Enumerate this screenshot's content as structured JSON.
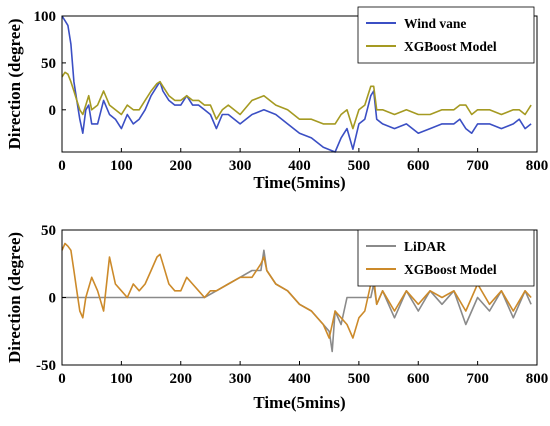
{
  "chart_data": [
    {
      "type": "line",
      "xlabel": "Time(5mins)",
      "ylabel": "Direction (degree)",
      "xlim": [
        0,
        800
      ],
      "ylim": [
        -45,
        100
      ],
      "xticks": [
        0,
        100,
        200,
        300,
        400,
        500,
        600,
        700,
        800
      ],
      "yticks": [
        0,
        50,
        100
      ],
      "grid": false,
      "legend_position": "top-right",
      "series": [
        {
          "name": "Wind vane",
          "color": "#3b4fc4",
          "x": [
            0,
            5,
            10,
            15,
            20,
            25,
            30,
            35,
            40,
            45,
            50,
            60,
            70,
            80,
            90,
            100,
            110,
            120,
            130,
            140,
            150,
            160,
            165,
            170,
            180,
            190,
            200,
            210,
            220,
            230,
            240,
            250,
            260,
            270,
            280,
            300,
            320,
            340,
            360,
            380,
            400,
            420,
            440,
            460,
            470,
            480,
            490,
            500,
            510,
            520,
            525,
            530,
            540,
            560,
            580,
            600,
            620,
            640,
            660,
            670,
            680,
            690,
            700,
            720,
            740,
            760,
            770,
            780,
            790
          ],
          "y": [
            100,
            95,
            90,
            70,
            30,
            10,
            -10,
            -25,
            0,
            5,
            -15,
            -15,
            10,
            -5,
            -10,
            -20,
            -5,
            -15,
            -10,
            0,
            15,
            25,
            30,
            20,
            10,
            5,
            5,
            15,
            5,
            5,
            0,
            -5,
            -20,
            -5,
            -5,
            -15,
            -5,
            0,
            -5,
            -15,
            -25,
            -30,
            -40,
            -45,
            -30,
            -20,
            -42,
            -15,
            -10,
            15,
            20,
            -10,
            -15,
            -20,
            -15,
            -25,
            -20,
            -15,
            -15,
            -10,
            -20,
            -25,
            -15,
            -15,
            -20,
            -15,
            -10,
            -20,
            -15
          ]
        },
        {
          "name": "XGBoost Model",
          "color": "#a59a22",
          "x": [
            0,
            5,
            10,
            15,
            20,
            25,
            30,
            35,
            40,
            45,
            50,
            60,
            70,
            80,
            90,
            100,
            110,
            120,
            130,
            140,
            150,
            160,
            165,
            170,
            180,
            190,
            200,
            210,
            220,
            230,
            240,
            250,
            260,
            270,
            280,
            300,
            320,
            340,
            360,
            380,
            400,
            420,
            440,
            460,
            470,
            480,
            490,
            500,
            510,
            520,
            525,
            530,
            540,
            560,
            580,
            600,
            620,
            640,
            660,
            670,
            680,
            690,
            700,
            720,
            740,
            760,
            770,
            780,
            790
          ],
          "y": [
            35,
            40,
            38,
            30,
            20,
            10,
            0,
            -5,
            5,
            15,
            0,
            5,
            20,
            5,
            0,
            -5,
            5,
            0,
            0,
            10,
            20,
            28,
            30,
            25,
            15,
            10,
            10,
            15,
            10,
            10,
            5,
            5,
            -10,
            0,
            5,
            -5,
            10,
            15,
            5,
            0,
            -10,
            -10,
            -15,
            -15,
            -5,
            0,
            -20,
            0,
            5,
            25,
            25,
            0,
            0,
            -5,
            0,
            -5,
            -5,
            0,
            0,
            5,
            5,
            -5,
            0,
            0,
            -5,
            0,
            0,
            -5,
            5
          ]
        }
      ]
    },
    {
      "type": "line",
      "xlabel": "Time(5mins)",
      "ylabel": "Direction (degree)",
      "xlim": [
        0,
        800
      ],
      "ylim": [
        -50,
        50
      ],
      "xticks": [
        0,
        100,
        200,
        300,
        400,
        500,
        600,
        700,
        800
      ],
      "yticks": [
        -50,
        0,
        50
      ],
      "grid": false,
      "legend_position": "top-right",
      "series": [
        {
          "name": "LiDAR",
          "color": "#8a8a8a",
          "x": [
            0,
            20,
            40,
            60,
            80,
            100,
            120,
            140,
            160,
            180,
            200,
            220,
            240,
            260,
            280,
            300,
            320,
            335,
            340,
            345,
            360,
            380,
            400,
            420,
            440,
            450,
            455,
            460,
            465,
            470,
            480,
            490,
            500,
            510,
            520,
            525,
            530,
            540,
            560,
            580,
            600,
            620,
            640,
            660,
            680,
            700,
            720,
            740,
            760,
            780,
            790
          ],
          "y": [
            0,
            0,
            0,
            0,
            0,
            0,
            0,
            0,
            0,
            0,
            0,
            0,
            0,
            5,
            10,
            15,
            20,
            20,
            35,
            20,
            10,
            5,
            -5,
            -10,
            -20,
            -25,
            -40,
            -10,
            -15,
            -20,
            0,
            0,
            0,
            0,
            0,
            10,
            -5,
            5,
            -15,
            5,
            -10,
            5,
            -5,
            5,
            -20,
            0,
            -10,
            5,
            -15,
            5,
            -5
          ]
        },
        {
          "name": "XGBoost Model",
          "color": "#cc8a2a",
          "x": [
            0,
            5,
            10,
            15,
            20,
            25,
            30,
            35,
            40,
            50,
            60,
            70,
            80,
            90,
            100,
            110,
            120,
            130,
            140,
            150,
            160,
            165,
            170,
            180,
            190,
            200,
            210,
            220,
            230,
            240,
            250,
            260,
            280,
            300,
            320,
            335,
            340,
            345,
            360,
            380,
            400,
            420,
            440,
            450,
            455,
            460,
            470,
            480,
            490,
            500,
            510,
            520,
            525,
            530,
            540,
            560,
            580,
            600,
            620,
            640,
            660,
            680,
            700,
            720,
            740,
            760,
            780,
            790
          ],
          "y": [
            35,
            40,
            38,
            35,
            20,
            5,
            -10,
            -15,
            0,
            15,
            5,
            -10,
            30,
            10,
            5,
            0,
            10,
            5,
            10,
            20,
            30,
            32,
            25,
            10,
            5,
            5,
            15,
            10,
            5,
            0,
            5,
            5,
            10,
            15,
            15,
            25,
            30,
            20,
            10,
            5,
            -5,
            -10,
            -20,
            -30,
            -20,
            -10,
            -15,
            -20,
            -30,
            -15,
            -10,
            10,
            15,
            -5,
            5,
            -10,
            5,
            -5,
            5,
            0,
            5,
            -10,
            10,
            -5,
            5,
            -10,
            5,
            0
          ]
        }
      ]
    }
  ]
}
